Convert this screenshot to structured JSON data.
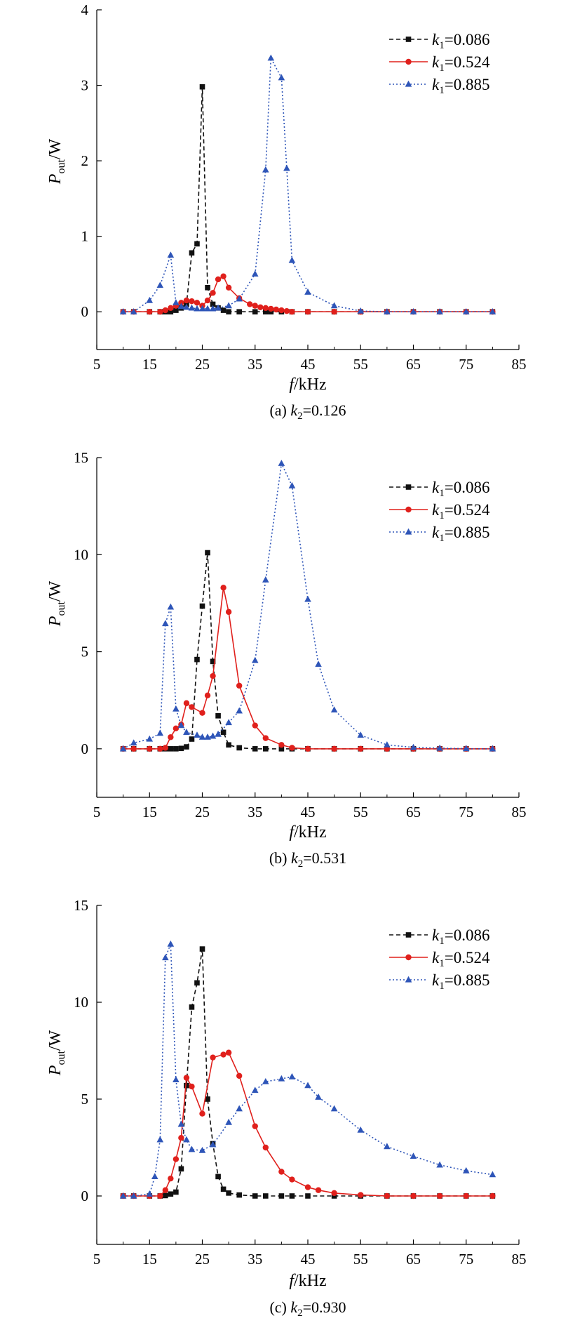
{
  "legend": {
    "entries": [
      {
        "prefix": "k",
        "sub": "1",
        "suffix": "=0.086",
        "color": "#111111",
        "dash": "dashed",
        "marker": "square"
      },
      {
        "prefix": "k",
        "sub": "1",
        "suffix": "=0.524",
        "color": "#e0201c",
        "dash": "solid",
        "marker": "circle"
      },
      {
        "prefix": "k",
        "sub": "1",
        "suffix": "=0.885",
        "color": "#2e55b8",
        "dash": "dotted",
        "marker": "triangle"
      }
    ]
  },
  "axis_text": {
    "ylabel_main": "P",
    "ylabel_sub": "out",
    "ylabel_unit": "/W",
    "xlabel_main": "f",
    "xlabel_unit": "/kHz"
  },
  "chart_data": [
    {
      "type": "line",
      "caption": {
        "prefix": "(a) k",
        "sub": "2",
        "suffix": "=0.126"
      },
      "xlim": [
        5,
        85
      ],
      "ylim": [
        -0.5,
        4
      ],
      "x_ticks": [
        5,
        15,
        25,
        35,
        45,
        55,
        65,
        75,
        85
      ],
      "y_ticks": [
        0,
        1,
        2,
        3,
        4
      ],
      "series": [
        {
          "name": "k1=0.086",
          "x": [
            10,
            12,
            15,
            17,
            18,
            19,
            20,
            21,
            22,
            23,
            24,
            25,
            26,
            27,
            28,
            29,
            30,
            32,
            35,
            37,
            38,
            40,
            42,
            45,
            50,
            55,
            60,
            65,
            70,
            75,
            80
          ],
          "y": [
            0,
            0,
            0,
            0,
            0,
            0,
            0.02,
            0.05,
            0.1,
            0.78,
            0.9,
            2.98,
            0.32,
            0.1,
            0.05,
            0.02,
            0,
            0,
            0,
            0,
            0,
            0,
            0,
            0,
            0,
            0,
            0,
            0,
            0,
            0,
            0
          ]
        },
        {
          "name": "k1=0.524",
          "x": [
            10,
            12,
            15,
            17,
            18,
            19,
            20,
            21,
            22,
            23,
            24,
            25,
            26,
            27,
            28,
            29,
            30,
            32,
            34,
            35,
            36,
            37,
            38,
            39,
            40,
            41,
            42,
            45,
            50,
            55,
            60,
            65,
            70,
            75,
            80
          ],
          "y": [
            0,
            0,
            0,
            0,
            0.02,
            0.05,
            0.08,
            0.12,
            0.15,
            0.14,
            0.12,
            0.08,
            0.15,
            0.25,
            0.43,
            0.47,
            0.32,
            0.18,
            0.1,
            0.08,
            0.06,
            0.05,
            0.04,
            0.03,
            0.02,
            0.01,
            0,
            0,
            0,
            0,
            0,
            0,
            0,
            0,
            0
          ]
        },
        {
          "name": "k1=0.885",
          "x": [
            10,
            12,
            15,
            17,
            19,
            20,
            21,
            22,
            23,
            24,
            25,
            26,
            27,
            28,
            30,
            32,
            35,
            37,
            38,
            40,
            41,
            42,
            45,
            50,
            55,
            60,
            65,
            70,
            75,
            80
          ],
          "y": [
            0,
            0,
            0.15,
            0.35,
            0.75,
            0.12,
            0.07,
            0.06,
            0.05,
            0.04,
            0.04,
            0.04,
            0.04,
            0.05,
            0.08,
            0.17,
            0.5,
            1.88,
            3.36,
            3.1,
            1.9,
            0.68,
            0.26,
            0.08,
            0.01,
            0,
            0,
            0,
            0,
            0
          ]
        }
      ]
    },
    {
      "type": "line",
      "caption": {
        "prefix": "(b) k",
        "sub": "2",
        "suffix": "=0.531"
      },
      "xlim": [
        5,
        85
      ],
      "ylim": [
        -2.5,
        15
      ],
      "x_ticks": [
        5,
        15,
        25,
        35,
        45,
        55,
        65,
        75,
        85
      ],
      "y_ticks": [
        0,
        5,
        10,
        15
      ],
      "series": [
        {
          "name": "k1=0.086",
          "x": [
            10,
            12,
            15,
            17,
            18,
            19,
            20,
            21,
            22,
            23,
            24,
            25,
            26,
            27,
            28,
            29,
            30,
            32,
            35,
            37,
            40,
            42,
            45,
            50,
            55,
            60,
            65,
            70,
            75,
            80
          ],
          "y": [
            0,
            0,
            0,
            0,
            0,
            0,
            0,
            0.02,
            0.1,
            0.5,
            4.6,
            7.35,
            10.1,
            4.5,
            1.7,
            0.85,
            0.2,
            0.05,
            0,
            0,
            0,
            0,
            0,
            0,
            0,
            0,
            0,
            0,
            0,
            0
          ]
        },
        {
          "name": "k1=0.524",
          "x": [
            10,
            12,
            15,
            17,
            18,
            19,
            20,
            21,
            22,
            23,
            25,
            26,
            27,
            29,
            30,
            32,
            35,
            37,
            40,
            42,
            45,
            50,
            55,
            60,
            65,
            70,
            75,
            80
          ],
          "y": [
            0,
            0,
            0,
            0,
            0.05,
            0.6,
            1.05,
            1.25,
            2.35,
            2.15,
            1.85,
            2.75,
            3.75,
            8.3,
            7.05,
            3.25,
            1.2,
            0.55,
            0.2,
            0.05,
            0,
            0,
            0,
            0,
            0,
            0,
            0,
            0
          ]
        },
        {
          "name": "k1=0.885",
          "x": [
            10,
            12,
            15,
            17,
            18,
            19,
            20,
            21,
            22,
            24,
            25,
            26,
            27,
            28,
            30,
            32,
            35,
            37,
            40,
            42,
            45,
            47,
            50,
            55,
            60,
            65,
            70,
            75,
            80
          ],
          "y": [
            0,
            0.3,
            0.5,
            0.8,
            6.45,
            7.3,
            2.05,
            1.2,
            0.85,
            0.7,
            0.6,
            0.6,
            0.65,
            0.75,
            1.35,
            1.95,
            4.55,
            8.7,
            14.7,
            13.55,
            7.7,
            4.35,
            2.0,
            0.7,
            0.2,
            0.07,
            0.03,
            0.01,
            0
          ]
        }
      ]
    },
    {
      "type": "line",
      "caption": {
        "prefix": "(c) k",
        "sub": "2",
        "suffix": "=0.930"
      },
      "xlim": [
        5,
        85
      ],
      "ylim": [
        -2.5,
        15
      ],
      "x_ticks": [
        5,
        15,
        25,
        35,
        45,
        55,
        65,
        75,
        85
      ],
      "y_ticks": [
        0,
        5,
        10,
        15
      ],
      "series": [
        {
          "name": "k1=0.086",
          "x": [
            10,
            12,
            15,
            17,
            18,
            19,
            20,
            21,
            22,
            23,
            24,
            25,
            26,
            27,
            28,
            29,
            30,
            32,
            35,
            37,
            40,
            42,
            45,
            50,
            55,
            60,
            65,
            70,
            75,
            80
          ],
          "y": [
            0,
            0,
            0,
            0,
            0.02,
            0.1,
            0.2,
            1.4,
            5.7,
            9.75,
            11,
            12.75,
            5,
            2.7,
            1,
            0.35,
            0.15,
            0.05,
            0,
            0,
            0,
            0,
            0,
            0,
            0,
            0,
            0,
            0,
            0,
            0
          ]
        },
        {
          "name": "k1=0.524",
          "x": [
            10,
            12,
            15,
            17,
            18,
            19,
            20,
            21,
            22,
            23,
            25,
            27,
            29,
            30,
            32,
            35,
            37,
            40,
            42,
            45,
            47,
            50,
            55,
            60,
            65,
            70,
            75,
            80
          ],
          "y": [
            0,
            0,
            0,
            0,
            0.3,
            0.9,
            1.9,
            3.0,
            6.1,
            5.65,
            4.25,
            7.15,
            7.3,
            7.4,
            6.2,
            3.6,
            2.5,
            1.25,
            0.85,
            0.45,
            0.3,
            0.15,
            0.05,
            0,
            0,
            0,
            0,
            0
          ]
        },
        {
          "name": "k1=0.885",
          "x": [
            10,
            12,
            15,
            16,
            17,
            18,
            19,
            20,
            21,
            22,
            23,
            25,
            27,
            30,
            32,
            35,
            37,
            40,
            42,
            45,
            47,
            50,
            55,
            60,
            65,
            70,
            75,
            80
          ],
          "y": [
            0,
            0,
            0.1,
            1,
            2.9,
            12.3,
            13,
            6.0,
            3.7,
            2.9,
            2.4,
            2.35,
            2.65,
            3.8,
            4.5,
            5.45,
            5.9,
            6.05,
            6.15,
            5.7,
            5.1,
            4.5,
            3.4,
            2.55,
            2.05,
            1.6,
            1.3,
            1.1
          ]
        }
      ]
    }
  ]
}
